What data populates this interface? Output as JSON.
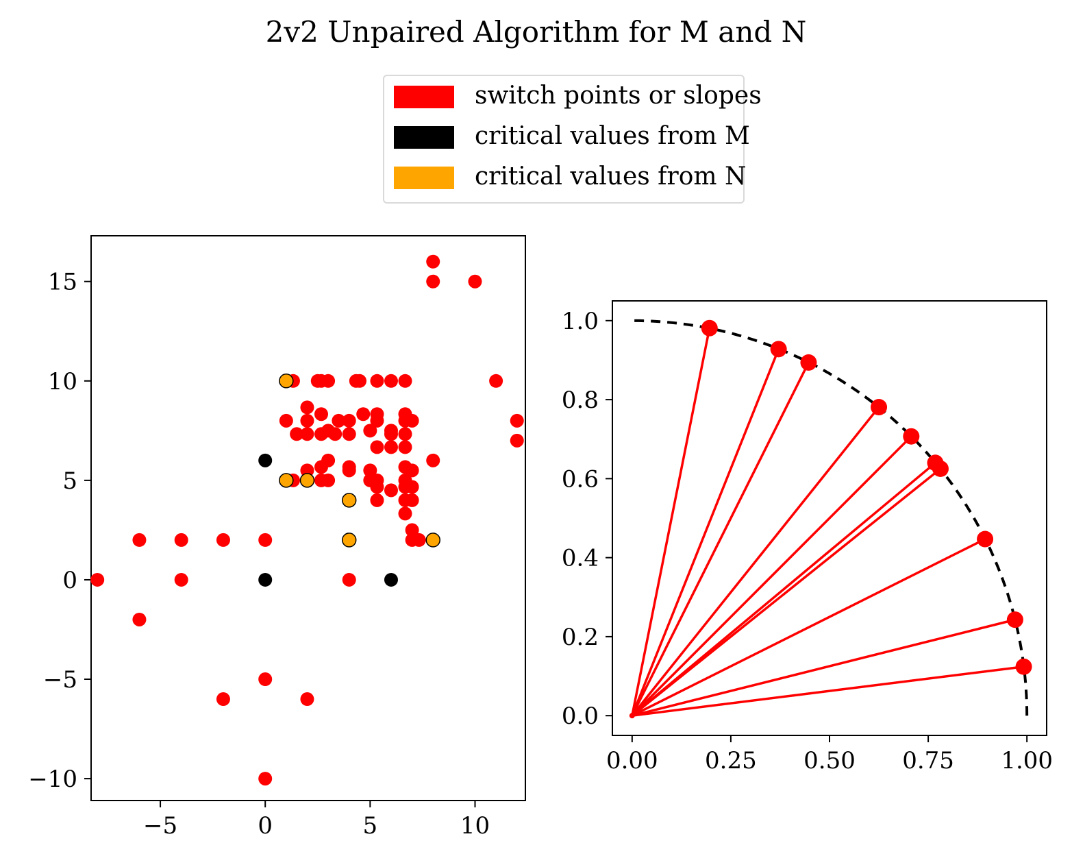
{
  "title": "2v2 Unpaired Algorithm for M and N",
  "legend": {
    "placement": "top-center",
    "items": [
      {
        "label": "switch points or slopes",
        "color": "#ff0000"
      },
      {
        "label": "critical values from M",
        "color": "#000000"
      },
      {
        "label": "critical values from N",
        "color": "#ffa500"
      }
    ]
  },
  "chart_data": [
    {
      "type": "scatter",
      "xlim": [
        -8.3,
        12.4
      ],
      "ylim": [
        -11.1,
        17.3
      ],
      "xticks": [
        -5,
        0,
        5,
        10
      ],
      "yticks": [
        -10,
        -5,
        0,
        5,
        10,
        15
      ],
      "xtick_labels": [
        "−5",
        "0",
        "5",
        "10"
      ],
      "ytick_labels": [
        "−10",
        "−5",
        "0",
        "5",
        "10",
        "15"
      ],
      "series": [
        {
          "color": "#ff0000",
          "points": [
            [
              8,
              16
            ],
            [
              8,
              15
            ],
            [
              10,
              15
            ],
            [
              11,
              10
            ],
            [
              12,
              8
            ],
            [
              12,
              7
            ],
            [
              1.33,
              10
            ],
            [
              2.5,
              10
            ],
            [
              2.67,
              10
            ],
            [
              3,
              10
            ],
            [
              4.33,
              10
            ],
            [
              4.5,
              10
            ],
            [
              5.33,
              10
            ],
            [
              6,
              10
            ],
            [
              6.67,
              10
            ],
            [
              1,
              8
            ],
            [
              2,
              8.67
            ],
            [
              2,
              8
            ],
            [
              2.67,
              8.33
            ],
            [
              3.5,
              8
            ],
            [
              4,
              8
            ],
            [
              4.67,
              8.33
            ],
            [
              5.33,
              8.33
            ],
            [
              5.33,
              8
            ],
            [
              6.67,
              8.33
            ],
            [
              6.67,
              8
            ],
            [
              7,
              8
            ],
            [
              1.5,
              7.33
            ],
            [
              2,
              7.33
            ],
            [
              2.67,
              7.33
            ],
            [
              3,
              7.5
            ],
            [
              3.33,
              7.33
            ],
            [
              4,
              7.33
            ],
            [
              5,
              7.5
            ],
            [
              6,
              7.5
            ],
            [
              6,
              7.33
            ],
            [
              6.67,
              7.33
            ],
            [
              5.33,
              6.67
            ],
            [
              6,
              6.67
            ],
            [
              6.67,
              6.67
            ],
            [
              8,
              6
            ],
            [
              3,
              6
            ],
            [
              2,
              5.5
            ],
            [
              2.67,
              5.67
            ],
            [
              4,
              5.67
            ],
            [
              4,
              5.5
            ],
            [
              5,
              5.5
            ],
            [
              6.67,
              5.67
            ],
            [
              7,
              5.5
            ],
            [
              1.33,
              5
            ],
            [
              2.67,
              5
            ],
            [
              3,
              5
            ],
            [
              5,
              5
            ],
            [
              5.33,
              5
            ],
            [
              5.33,
              4.67
            ],
            [
              6,
              4.5
            ],
            [
              6.67,
              5
            ],
            [
              6.67,
              4.67
            ],
            [
              7,
              4.67
            ],
            [
              5.33,
              4
            ],
            [
              6.67,
              4
            ],
            [
              7,
              4
            ],
            [
              6.67,
              3.33
            ],
            [
              7,
              2.5
            ],
            [
              7,
              2
            ],
            [
              7.33,
              2
            ],
            [
              -6,
              2
            ],
            [
              -4,
              2
            ],
            [
              -2,
              2
            ],
            [
              0,
              2
            ],
            [
              -8,
              0
            ],
            [
              -4,
              0
            ],
            [
              4,
              0
            ],
            [
              -6,
              -2
            ],
            [
              0,
              -5
            ],
            [
              -2,
              -6
            ],
            [
              2,
              -6
            ],
            [
              0,
              -10
            ]
          ]
        },
        {
          "color": "#000000",
          "points": [
            [
              0,
              6
            ],
            [
              0,
              0
            ],
            [
              6,
              0
            ]
          ]
        },
        {
          "color": "#ffa500",
          "points": [
            [
              1,
              10
            ],
            [
              1,
              5
            ],
            [
              2,
              5
            ],
            [
              4,
              4
            ],
            [
              4,
              2
            ],
            [
              8,
              2
            ]
          ]
        }
      ]
    },
    {
      "type": "line",
      "xlim": [
        -0.05,
        1.05
      ],
      "ylim": [
        -0.05,
        1.05
      ],
      "xticks": [
        0,
        0.25,
        0.5,
        0.75,
        1.0
      ],
      "yticks": [
        0,
        0.2,
        0.4,
        0.6,
        0.8,
        1.0
      ],
      "xtick_labels": [
        "0.00",
        "0.25",
        "0.50",
        "0.75",
        "1.00"
      ],
      "ytick_labels": [
        "0.0",
        "0.2",
        "0.4",
        "0.6",
        "0.8",
        "1.0"
      ],
      "arc": {
        "style": "dashed",
        "color": "#000000",
        "radius": 1
      },
      "rays": {
        "color": "#ff0000",
        "origin": [
          0,
          0
        ],
        "endpoints": [
          [
            0.196,
            0.981
          ],
          [
            0.371,
            0.928
          ],
          [
            0.447,
            0.894
          ],
          [
            0.625,
            0.781
          ],
          [
            0.707,
            0.707
          ],
          [
            0.768,
            0.64
          ],
          [
            0.781,
            0.625
          ],
          [
            0.894,
            0.447
          ],
          [
            0.97,
            0.243
          ],
          [
            0.992,
            0.124
          ]
        ]
      }
    }
  ]
}
